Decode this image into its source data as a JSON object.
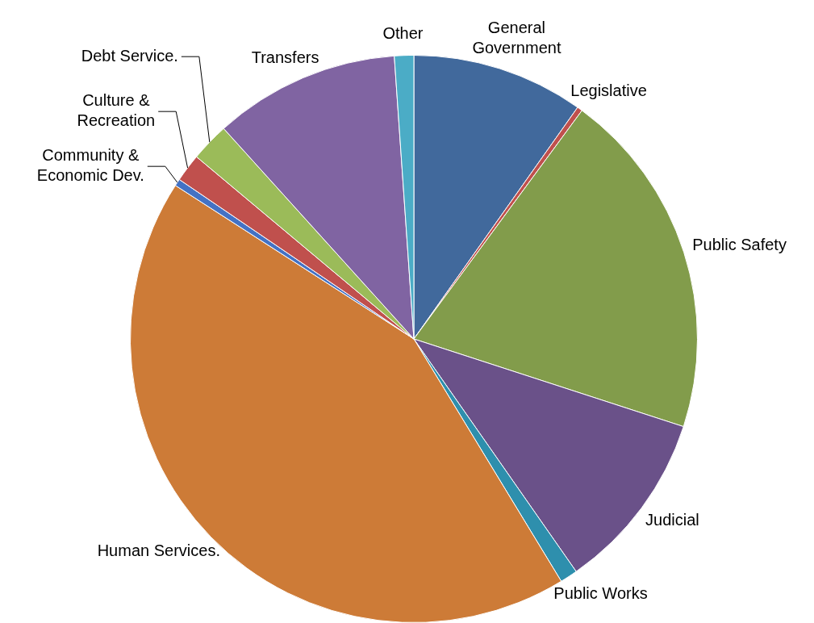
{
  "chart_data": {
    "type": "pie",
    "categories": [
      "General Government",
      "Legislative",
      "Public Safety",
      "Judicial",
      "Public Works",
      "Human Services.",
      "Community & Economic Dev.",
      "Culture & Recreation",
      "Debt Service.",
      "Transfers",
      "Other"
    ],
    "values": [
      9.8,
      0.3,
      19.9,
      10.3,
      1.0,
      42.8,
      0.4,
      1.6,
      2.2,
      10.6,
      1.1
    ],
    "colors": [
      "#41699c",
      "#c0504d",
      "#829c4b",
      "#6a5189",
      "#2e8fad",
      "#cd7b37",
      "#4472c4",
      "#c0504d",
      "#9bbb59",
      "#8064a2",
      "#4bacc6"
    ]
  }
}
